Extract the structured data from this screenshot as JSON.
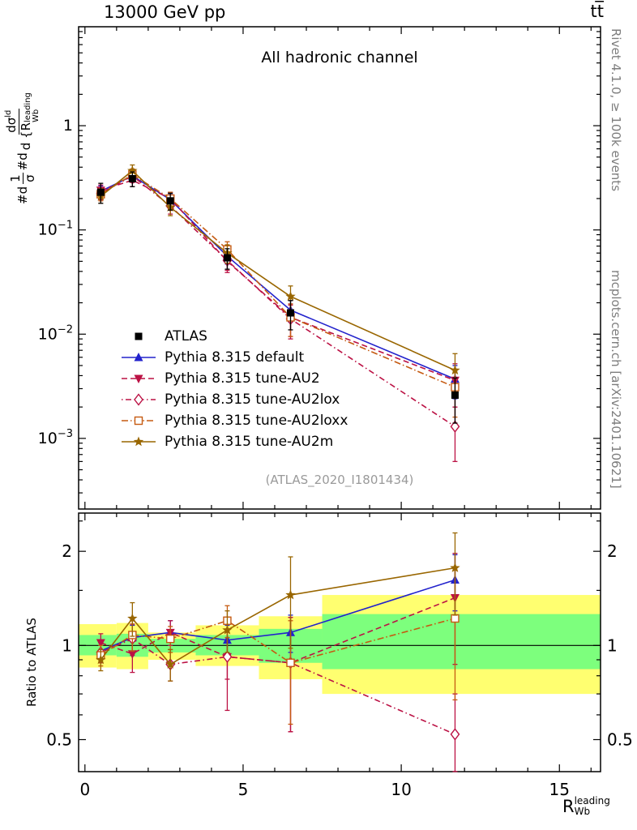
{
  "header": {
    "left": "13000 GeV pp",
    "right": "tt̅"
  },
  "side_texts": {
    "top": "Rivet 4.1.0, ≥ 100k events",
    "bottom": "mcplots.cern.ch [arXiv:2401.10621]"
  },
  "main_panel": {
    "title": "All hadronic channel",
    "watermark": "(ATLAS_2020_I1801434)",
    "ylabel_parts": {
      "t1": "#d",
      "f1n": "1",
      "f1d": "σ",
      "t2": "#d",
      "f2n_base": "dσ",
      "f2n_sup": "ld",
      "f2d_pre": "d {",
      "f2d_base": "R",
      "f2d_sub": "Wb",
      "f2d_sup": "leading"
    }
  },
  "ratio_panel": {
    "ylabel": "Ratio to ATLAS"
  },
  "x_axis": {
    "base": "R",
    "sub": "Wb",
    "sup": "leading"
  },
  "chart_data": {
    "type": "line",
    "title": "All hadronic channel",
    "xlabel": "R_Wb^leading",
    "ylabel": "#d 1/σ #d dσ^ld / d {R_Wb^leading}",
    "ratio_ylabel": "Ratio to ATLAS",
    "legend_position": "inside-left",
    "x": [
      0.5,
      1.5,
      2.7,
      4.5,
      6.5,
      11.7
    ],
    "xlim": [
      -0.2,
      16.3
    ],
    "x_ticks_major": [
      0,
      5,
      10,
      15
    ],
    "main": {
      "ylim": [
        0.00021,
        8.9
      ],
      "y_scale": "log",
      "y_tick_exponents": [
        0,
        -1,
        -2,
        -3
      ],
      "series": [
        {
          "id": "atlas",
          "label": "ATLAS",
          "color": "#000000",
          "marker": "square-filled",
          "line": "none",
          "values": [
            0.23,
            0.31,
            0.19,
            0.054,
            0.016,
            0.0026
          ],
          "errors": [
            0.05,
            0.05,
            0.035,
            0.012,
            0.005,
            0.0012
          ]
        },
        {
          "id": "default",
          "label": "Pythia 8.315 default",
          "color": "#2222cc",
          "marker": "triangle-up",
          "line": "solid",
          "values": [
            0.235,
            0.33,
            0.195,
            0.056,
            0.017,
            0.0037
          ],
          "errors": [
            0.03,
            0.04,
            0.028,
            0.009,
            0.004,
            0.0013
          ]
        },
        {
          "id": "au2",
          "label": "Pythia 8.315 tune-AU2",
          "color": "#bb1144",
          "marker": "triangle-down",
          "line": "dash",
          "values": [
            0.24,
            0.3,
            0.2,
            0.05,
            0.0145,
            0.0036
          ],
          "errors": [
            0.03,
            0.04,
            0.03,
            0.009,
            0.005,
            0.0016
          ]
        },
        {
          "id": "au2lox",
          "label": "Pythia 8.315 tune-AU2lox",
          "color": "#bb1144",
          "marker": "diamond-open",
          "line": "dashdot",
          "values": [
            0.225,
            0.33,
            0.17,
            0.051,
            0.014,
            0.0013
          ],
          "errors": [
            0.03,
            0.045,
            0.028,
            0.012,
            0.005,
            0.0007
          ]
        },
        {
          "id": "au2loxx",
          "label": "Pythia 8.315 tune-AU2loxx",
          "color": "#c55a11",
          "marker": "square-open",
          "line": "dashdot2",
          "values": [
            0.22,
            0.34,
            0.2,
            0.065,
            0.0145,
            0.0031
          ],
          "errors": [
            0.03,
            0.045,
            0.03,
            0.012,
            0.005,
            0.0015
          ]
        },
        {
          "id": "au2m",
          "label": "Pythia 8.315 tune-AU2m",
          "color": "#996600",
          "marker": "star",
          "line": "solid",
          "values": [
            0.21,
            0.37,
            0.165,
            0.06,
            0.023,
            0.0045
          ],
          "errors": [
            0.03,
            0.05,
            0.028,
            0.012,
            0.006,
            0.002
          ]
        }
      ]
    },
    "ratio": {
      "ylim": [
        0.395,
        2.65
      ],
      "y_scale": "log",
      "y_ticks": [
        0.5,
        1,
        2
      ],
      "y_minor_ticks": [
        0.6,
        0.7,
        0.8,
        0.9,
        1.5,
        2.5
      ],
      "reference_value": 1,
      "bands": {
        "edges": [
          -0.2,
          1,
          2,
          3.5,
          5.5,
          7.5,
          16.3
        ],
        "yellow": {
          "color": "#ffff70",
          "lo": [
            0.85,
            0.84,
            0.9,
            0.86,
            0.78,
            0.7
          ],
          "hi": [
            1.17,
            1.18,
            1.1,
            1.16,
            1.24,
            1.45
          ]
        },
        "green": {
          "color": "#7dff7d",
          "lo": [
            0.93,
            0.92,
            0.95,
            0.93,
            0.88,
            0.84
          ],
          "hi": [
            1.08,
            1.09,
            1.05,
            1.08,
            1.13,
            1.26
          ]
        }
      },
      "series": [
        {
          "id": "default",
          "color": "#2222cc",
          "marker": "triangle-up",
          "line": "solid",
          "values": [
            0.96,
            1.06,
            1.1,
            1.04,
            1.1,
            1.62
          ],
          "errors": [
            0.06,
            0.1,
            0.1,
            0.12,
            0.15,
            0.33
          ]
        },
        {
          "id": "au2",
          "color": "#bb1144",
          "marker": "triangle-down",
          "line": "dash",
          "values": [
            1.02,
            0.94,
            1.1,
            0.92,
            0.88,
            1.42
          ],
          "errors": [
            0.07,
            0.12,
            0.1,
            0.14,
            0.35,
            0.55
          ]
        },
        {
          "id": "au2lox",
          "color": "#bb1144",
          "marker": "diamond-open",
          "line": "dashdot",
          "values": [
            0.95,
            1.05,
            0.87,
            0.92,
            0.88,
            0.52
          ],
          "errors": [
            0.07,
            0.12,
            0.1,
            0.3,
            0.35,
            0.18
          ]
        },
        {
          "id": "au2loxx",
          "color": "#c55a11",
          "marker": "square-open",
          "line": "dashdot2",
          "values": [
            0.93,
            1.08,
            1.05,
            1.2,
            0.88,
            1.22
          ],
          "errors": [
            0.07,
            0.12,
            0.1,
            0.14,
            0.32,
            0.55
          ]
        },
        {
          "id": "au2m",
          "color": "#996600",
          "marker": "star",
          "line": "solid",
          "values": [
            0.9,
            1.22,
            0.87,
            1.12,
            1.45,
            1.77
          ],
          "errors": [
            0.07,
            0.15,
            0.1,
            0.17,
            0.47,
            0.52
          ]
        }
      ]
    }
  }
}
